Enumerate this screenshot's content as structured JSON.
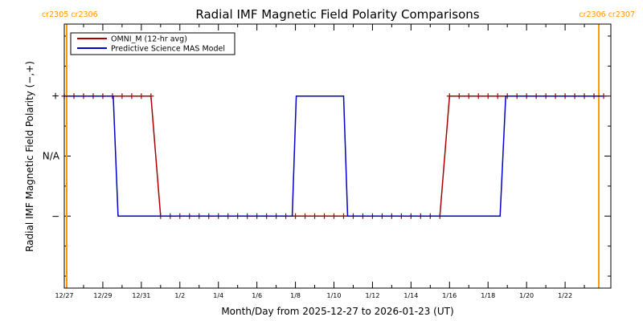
{
  "chart_data": {
    "type": "line",
    "title": "Radial IMF Magnetic Field Polarity Comparisons",
    "xlabel": "Month/Day from 2025-12-27 to 2026-01-23 (UT)",
    "ylabel": "Radial IMF Magnetic Field Polarity (−,+)",
    "x_unit": "date (UT)",
    "xlim": [
      "2025-12-27",
      "2026-01-24T09:00"
    ],
    "ylim": [
      -2.2,
      2.2
    ],
    "yticks": [
      {
        "value": 1,
        "label": "+"
      },
      {
        "value": 0,
        "label": "N/A"
      },
      {
        "value": -1,
        "label": "−"
      }
    ],
    "xticks": [
      {
        "date": "2025-12-27",
        "label": "12/27"
      },
      {
        "date": "2025-12-29",
        "label": "12/29"
      },
      {
        "date": "2025-12-31",
        "label": "12/31"
      },
      {
        "date": "2026-01-02",
        "label": "1/2"
      },
      {
        "date": "2026-01-04",
        "label": "1/4"
      },
      {
        "date": "2026-01-06",
        "label": "1/6"
      },
      {
        "date": "2026-01-08",
        "label": "1/8"
      },
      {
        "date": "2026-01-10",
        "label": "1/10"
      },
      {
        "date": "2026-01-12",
        "label": "1/12"
      },
      {
        "date": "2026-01-14",
        "label": "1/14"
      },
      {
        "date": "2026-01-16",
        "label": "1/16"
      },
      {
        "date": "2026-01-18",
        "label": "1/18"
      },
      {
        "date": "2026-01-20",
        "label": "1/20"
      },
      {
        "date": "2026-01-22",
        "label": "1/22"
      }
    ],
    "legend": {
      "placement": "top-left"
    },
    "series": [
      {
        "name": "OMNI_M (12-hr avg)",
        "color": "#aa0000",
        "marker": "plus",
        "x": [
          "2025-12-27T00:00",
          "2025-12-27T12:00",
          "2025-12-28T00:00",
          "2025-12-28T12:00",
          "2025-12-29T00:00",
          "2025-12-29T12:00",
          "2025-12-30T00:00",
          "2025-12-30T12:00",
          "2025-12-31T00:00",
          "2025-12-31T12:00",
          "2026-01-01T00:00",
          "2026-01-01T12:00",
          "2026-01-02T00:00",
          "2026-01-02T12:00",
          "2026-01-03T00:00",
          "2026-01-03T12:00",
          "2026-01-04T00:00",
          "2026-01-04T12:00",
          "2026-01-05T00:00",
          "2026-01-05T12:00",
          "2026-01-06T00:00",
          "2026-01-06T12:00",
          "2026-01-07T00:00",
          "2026-01-07T12:00",
          "2026-01-08T00:00",
          "2026-01-08T12:00",
          "2026-01-09T00:00",
          "2026-01-09T12:00",
          "2026-01-10T00:00",
          "2026-01-10T12:00",
          "2026-01-11T00:00",
          "2026-01-11T12:00",
          "2026-01-12T00:00",
          "2026-01-12T12:00",
          "2026-01-13T00:00",
          "2026-01-13T12:00",
          "2026-01-14T00:00",
          "2026-01-14T12:00",
          "2026-01-15T00:00",
          "2026-01-15T12:00",
          "2026-01-16T00:00",
          "2026-01-16T12:00",
          "2026-01-17T00:00",
          "2026-01-17T12:00",
          "2026-01-18T00:00",
          "2026-01-18T12:00",
          "2026-01-19T00:00",
          "2026-01-19T12:00",
          "2026-01-20T00:00",
          "2026-01-20T12:00",
          "2026-01-21T00:00",
          "2026-01-21T12:00",
          "2026-01-22T00:00",
          "2026-01-22T12:00",
          "2026-01-23T00:00",
          "2026-01-23T12:00",
          "2026-01-24T00:00"
        ],
        "y": [
          1,
          1,
          1,
          1,
          1,
          1,
          1,
          1,
          1,
          1,
          -1,
          -1,
          -1,
          -1,
          -1,
          -1,
          -1,
          -1,
          -1,
          -1,
          -1,
          -1,
          -1,
          -1,
          -1,
          -1,
          -1,
          -1,
          -1,
          -1,
          -1,
          -1,
          -1,
          -1,
          -1,
          -1,
          -1,
          -1,
          -1,
          -1,
          1,
          1,
          1,
          1,
          1,
          1,
          1,
          1,
          1,
          1,
          1,
          1,
          1,
          1,
          1,
          1,
          1
        ]
      },
      {
        "name": "Predictive Science MAS Model",
        "color": "#0000cc",
        "x": [
          "2025-12-27T00:00",
          "2025-12-29T13:00",
          "2025-12-29T19:00",
          "2026-01-07T20:00",
          "2026-01-08T01:00",
          "2026-01-10T12:00",
          "2026-01-10T17:00",
          "2026-01-18T15:00",
          "2026-01-18T22:00",
          "2026-01-24T00:00"
        ],
        "y": [
          1,
          1,
          -1,
          -1,
          1,
          1,
          -1,
          -1,
          1,
          1
        ]
      }
    ],
    "carrington_markers": [
      {
        "date": "2025-12-27T03:00",
        "color": "#ff9900",
        "labels": [
          "cr2305",
          "cr2306"
        ]
      },
      {
        "date": "2026-01-23T18:00",
        "color": "#ff9900",
        "labels": [
          "cr2306",
          "cr2307"
        ]
      }
    ]
  }
}
